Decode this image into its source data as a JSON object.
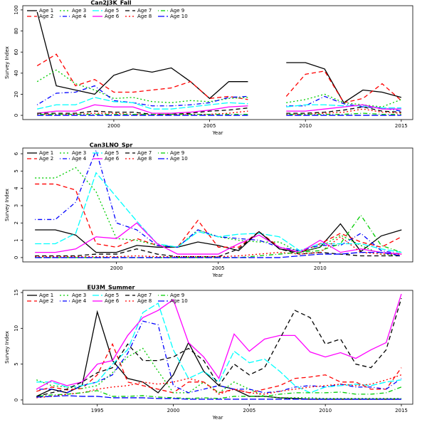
{
  "chart_data": [
    {
      "type": "line",
      "title": "Can2J3K_Fall",
      "xlabel": "Year",
      "ylabel": "Survey Index",
      "x": [
        1996,
        1997,
        1998,
        1999,
        2000,
        2001,
        2002,
        2003,
        2004,
        2005,
        2006,
        2007,
        2008,
        2009,
        2010,
        2011,
        2012,
        2013,
        2014,
        2015
      ],
      "xlim": [
        1995.25,
        2015.6
      ],
      "xticks": [
        2000,
        2005,
        2010,
        2015
      ],
      "ylim": [
        -4,
        104
      ],
      "yticks": [
        0,
        20,
        40,
        60,
        80,
        100
      ],
      "series": [
        {
          "name": "Age 1",
          "color": "#000000",
          "dash": "",
          "values": [
            98,
            28,
            24,
            20,
            38,
            44,
            41,
            45,
            32,
            16,
            32,
            32,
            null,
            50,
            50,
            44,
            12,
            24,
            22,
            17
          ]
        },
        {
          "name": "Age 2",
          "color": "#ff0000",
          "dash": "6,4",
          "values": [
            47,
            58,
            28,
            34,
            22,
            22,
            24,
            26,
            32,
            16,
            18,
            15,
            null,
            18,
            39,
            42,
            12,
            16,
            30,
            14
          ]
        },
        {
          "name": "Age 3",
          "color": "#00cd00",
          "dash": "2,3",
          "values": [
            32,
            43,
            30,
            24,
            16,
            17,
            13,
            12,
            14,
            13,
            16,
            17,
            null,
            12,
            15,
            20,
            12,
            10,
            8,
            15
          ]
        },
        {
          "name": "Age 4",
          "color": "#0000ff",
          "dash": "1,3,6,3",
          "values": [
            10,
            21,
            22,
            28,
            14,
            12,
            9,
            9,
            10,
            12,
            17,
            18,
            null,
            9,
            9,
            18,
            11,
            8,
            7,
            4
          ]
        },
        {
          "name": "Age 5",
          "color": "#00ffff",
          "dash": "9,3",
          "values": [
            6,
            10,
            10,
            17,
            13,
            12,
            6,
            6,
            8,
            10,
            12,
            11,
            null,
            8,
            10,
            10,
            9,
            9,
            7,
            7
          ]
        },
        {
          "name": "Age 6",
          "color": "#ff00ff",
          "dash": "",
          "values": [
            2,
            4,
            4,
            10,
            8,
            8,
            2,
            2,
            3,
            5,
            8,
            9,
            null,
            4,
            4,
            6,
            8,
            10,
            6,
            6
          ]
        },
        {
          "name": "Age 7",
          "color": "#000000",
          "dash": "6,4",
          "values": [
            2,
            2,
            2,
            4,
            3,
            3,
            1,
            1,
            2,
            4,
            5,
            7,
            null,
            2,
            2,
            3,
            5,
            8,
            4,
            3
          ]
        },
        {
          "name": "Age 8",
          "color": "#ff0000",
          "dash": "2,3",
          "values": [
            1,
            1,
            1,
            2,
            2,
            1,
            1,
            1,
            1,
            1,
            2,
            4,
            null,
            1,
            1,
            2,
            3,
            6,
            3,
            2
          ]
        },
        {
          "name": "Age 9",
          "color": "#00cd00",
          "dash": "1,3,6,3",
          "values": [
            1,
            1,
            1,
            1,
            1,
            1,
            1,
            1,
            1,
            1,
            1,
            1,
            null,
            1,
            1,
            1,
            1,
            2,
            1,
            1
          ]
        },
        {
          "name": "Age 10",
          "color": "#0000ff",
          "dash": "9,3",
          "values": [
            0,
            0,
            0,
            0,
            0,
            0,
            0,
            0,
            0,
            0,
            0,
            0,
            null,
            0,
            0,
            0,
            0,
            0,
            0,
            0
          ]
        }
      ]
    },
    {
      "type": "line",
      "title": "Can3LNO_Spr",
      "xlabel": "Year",
      "ylabel": "Survey Index",
      "x": [
        1996,
        1997,
        1998,
        1999,
        2000,
        2001,
        2002,
        2003,
        2004,
        2005,
        2006,
        2007,
        2008,
        2009,
        2010,
        2011,
        2012,
        2013,
        2014
      ],
      "xlim": [
        1995.4,
        2014.55
      ],
      "xticks": [
        2000,
        2005,
        2010
      ],
      "ylim": [
        -0.25,
        6.33
      ],
      "yticks": [
        0,
        1,
        2,
        3,
        4,
        5,
        6
      ],
      "series": [
        {
          "name": "Age 1",
          "color": "#000000",
          "dash": "",
          "values": [
            1.6,
            1.6,
            1.3,
            0.3,
            0.3,
            0.7,
            0.6,
            0.6,
            0.9,
            0.7,
            0.4,
            1.5,
            0.5,
            0.3,
            0.6,
            1.95,
            0.35,
            1.25,
            1.6
          ]
        },
        {
          "name": "Age 2",
          "color": "#ff0000",
          "dash": "6,4",
          "values": [
            4.25,
            4.25,
            3.9,
            0.8,
            0.6,
            1.1,
            0.7,
            0.6,
            2.15,
            0.6,
            0.6,
            1.5,
            0.6,
            0.3,
            0.8,
            1.4,
            0.9,
            0.6,
            1.2
          ]
        },
        {
          "name": "Age 3",
          "color": "#00cd00",
          "dash": "2,3",
          "values": [
            4.6,
            4.6,
            5.2,
            3.8,
            1.1,
            1.0,
            0.7,
            0.6,
            1.6,
            1.2,
            1.0,
            0.9,
            0.9,
            0.3,
            0.6,
            1.3,
            0.7,
            0.2,
            0.1
          ]
        },
        {
          "name": "Age 4",
          "color": "#0000ff",
          "dash": "1,3,6,3",
          "values": [
            2.2,
            2.2,
            3.2,
            6.2,
            2.0,
            1.6,
            0.7,
            0.6,
            1.6,
            1.2,
            1.1,
            1.0,
            0.6,
            0.4,
            0.7,
            0.7,
            1.4,
            0.4,
            0.2
          ]
        },
        {
          "name": "Age 5",
          "color": "#00ffff",
          "dash": "9,3",
          "values": [
            0.8,
            0.8,
            1.4,
            4.9,
            3.5,
            2.1,
            0.8,
            0.6,
            1.5,
            1.2,
            1.35,
            1.4,
            1.2,
            0.4,
            0.8,
            0.8,
            0.8,
            0.5,
            0.3
          ]
        },
        {
          "name": "Age 6",
          "color": "#ff00ff",
          "dash": "",
          "values": [
            0.3,
            0.3,
            0.5,
            1.2,
            1.1,
            2.0,
            0.8,
            0.2,
            0.2,
            0.2,
            0.8,
            1.3,
            0.6,
            0.3,
            1.0,
            0.3,
            0.5,
            0.3,
            0.2
          ]
        },
        {
          "name": "Age 7",
          "color": "#000000",
          "dash": "6,4",
          "values": [
            0.1,
            0.1,
            0.1,
            0.2,
            0.2,
            0.5,
            0.2,
            0.05,
            0.05,
            0.05,
            0.5,
            1.5,
            0.5,
            0.2,
            0.3,
            0.2,
            0.1,
            0.1,
            0.1
          ]
        },
        {
          "name": "Age 8",
          "color": "#ff0000",
          "dash": "2,3",
          "values": [
            0.05,
            0.05,
            0.05,
            0.05,
            0.05,
            0.1,
            0.05,
            0.05,
            0.05,
            0.05,
            0.1,
            0.2,
            0.3,
            0.2,
            0.3,
            1.2,
            0.3,
            0.2,
            0.2
          ]
        },
        {
          "name": "Age 9",
          "color": "#00cd00",
          "dash": "1,3,6,3",
          "values": [
            0,
            0,
            0,
            0,
            0,
            0,
            0,
            0,
            0,
            0,
            0,
            0.1,
            0.2,
            0.3,
            0.4,
            0.8,
            2.45,
            0.7,
            0.3
          ]
        },
        {
          "name": "Age 10",
          "color": "#0000ff",
          "dash": "9,3",
          "values": [
            0,
            0,
            0,
            0,
            0,
            0,
            0,
            0,
            0,
            0,
            0,
            0,
            0,
            0.1,
            0.2,
            0.2,
            0.3,
            0.3,
            0.1
          ]
        }
      ]
    },
    {
      "type": "line",
      "title": "EU3M_Summer",
      "xlabel": "Year",
      "ylabel": "Survey Index",
      "x": [
        1991,
        1992,
        1993,
        1994,
        1995,
        1996,
        1997,
        1998,
        1999,
        2000,
        2001,
        2002,
        2003,
        2004,
        2005,
        2006,
        2007,
        2008,
        2009,
        2010,
        2011,
        2012,
        2013,
        2014,
        2015
      ],
      "xlim": [
        1990.1,
        2015.75
      ],
      "xticks": [
        1995,
        2000,
        2005,
        2010,
        2015
      ],
      "ylim": [
        -0.6,
        15.3
      ],
      "yticks": [
        0,
        5,
        10,
        15
      ],
      "series": [
        {
          "name": "Age 1",
          "color": "#000000",
          "dash": "",
          "values": [
            0.5,
            1.5,
            1.0,
            2.0,
            12.3,
            5.5,
            3.0,
            2.5,
            1.0,
            3.5,
            8.0,
            4.0,
            2.0,
            1.5,
            0.5,
            0.5,
            0.3,
            0.2,
            0.1,
            0.1,
            0.1,
            0.1,
            0.1,
            0.1,
            0.1
          ]
        },
        {
          "name": "Age 2",
          "color": "#ff0000",
          "dash": "6,4",
          "values": [
            1.2,
            1.8,
            1.4,
            1.6,
            3.5,
            7.8,
            2.5,
            2.0,
            1.5,
            1.0,
            2.5,
            2.5,
            1.0,
            1.5,
            1.0,
            1.5,
            2.0,
            3.0,
            3.2,
            3.5,
            2.5,
            2.5,
            1.5,
            1.5,
            4.5
          ]
        },
        {
          "name": "Age 3",
          "color": "#00cd00",
          "dash": "2,3",
          "values": [
            2.8,
            2.0,
            1.8,
            1.6,
            2.0,
            3.8,
            6.0,
            7.2,
            4.0,
            1.0,
            1.0,
            2.5,
            1.0,
            2.5,
            1.5,
            0.5,
            0.3,
            0.3,
            0.3,
            0.2,
            0.2,
            0.2,
            0.2,
            0.2,
            0.2
          ]
        },
        {
          "name": "Age 4",
          "color": "#0000ff",
          "dash": "1,3,6,3",
          "values": [
            1.5,
            1.5,
            1.0,
            2.0,
            2.5,
            3.5,
            6.5,
            11.0,
            10.5,
            2.0,
            1.0,
            1.5,
            2.0,
            1.5,
            1.5,
            1.0,
            1.2,
            1.8,
            2.0,
            1.8,
            2.2,
            1.8,
            1.8,
            1.5,
            3.0
          ]
        },
        {
          "name": "Age 5",
          "color": "#00ffff",
          "dash": "9,3",
          "values": [
            2.5,
            2.5,
            1.8,
            2.0,
            2.5,
            5.0,
            7.0,
            12.2,
            13.5,
            7.0,
            3.0,
            4.0,
            2.5,
            6.8,
            5.2,
            5.7,
            4.0,
            2.0,
            1.0,
            1.8,
            2.0,
            2.2,
            2.0,
            2.5,
            2.8
          ]
        },
        {
          "name": "Age 6",
          "color": "#ff00ff",
          "dash": "",
          "values": [
            1.5,
            2.7,
            2.0,
            2.5,
            5.0,
            5.5,
            9.0,
            11.5,
            12.5,
            14.0,
            8.0,
            6.0,
            3.0,
            9.2,
            6.8,
            8.5,
            9.0,
            9.0,
            6.7,
            6.0,
            6.6,
            5.8,
            7.0,
            8.0,
            14.8
          ]
        },
        {
          "name": "Age 7",
          "color": "#000000",
          "dash": "6,4",
          "values": [
            0.5,
            1.0,
            1.5,
            2.5,
            3.8,
            4.5,
            7.8,
            5.5,
            5.5,
            6.0,
            7.2,
            5.5,
            2.0,
            5.0,
            3.5,
            4.5,
            8.5,
            12.5,
            11.5,
            7.8,
            8.5,
            5.0,
            4.5,
            7.0,
            14.2
          ]
        },
        {
          "name": "Age 8",
          "color": "#ff0000",
          "dash": "2,3",
          "values": [
            0.3,
            0.5,
            0.8,
            1.0,
            1.5,
            1.8,
            2.0,
            2.5,
            2.2,
            2.5,
            3.0,
            2.5,
            0.8,
            1.5,
            1.0,
            0.8,
            1.2,
            1.5,
            1.8,
            2.0,
            2.2,
            2.0,
            2.2,
            2.8,
            3.5
          ]
        },
        {
          "name": "Age 9",
          "color": "#00cd00",
          "dash": "1,3,6,3",
          "values": [
            0.5,
            0.7,
            0.8,
            1.0,
            1.3,
            0.5,
            0.5,
            0.6,
            0.4,
            0.3,
            0.2,
            0.3,
            0.2,
            0.5,
            0.5,
            0.5,
            0.8,
            1.0,
            1.0,
            1.0,
            1.1,
            0.8,
            0.8,
            1.0,
            1.8
          ]
        },
        {
          "name": "Age 10",
          "color": "#0000ff",
          "dash": "9,3",
          "values": [
            0.4,
            0.5,
            0.6,
            0.5,
            0.5,
            0.3,
            0.3,
            0.3,
            0.2,
            0.2,
            0.1,
            0.1,
            0.1,
            0.1,
            0.1,
            0.1,
            0.1,
            0.1,
            0.1,
            0.1,
            0.1,
            0.1,
            0.1,
            0.1,
            0.1
          ]
        }
      ]
    }
  ]
}
